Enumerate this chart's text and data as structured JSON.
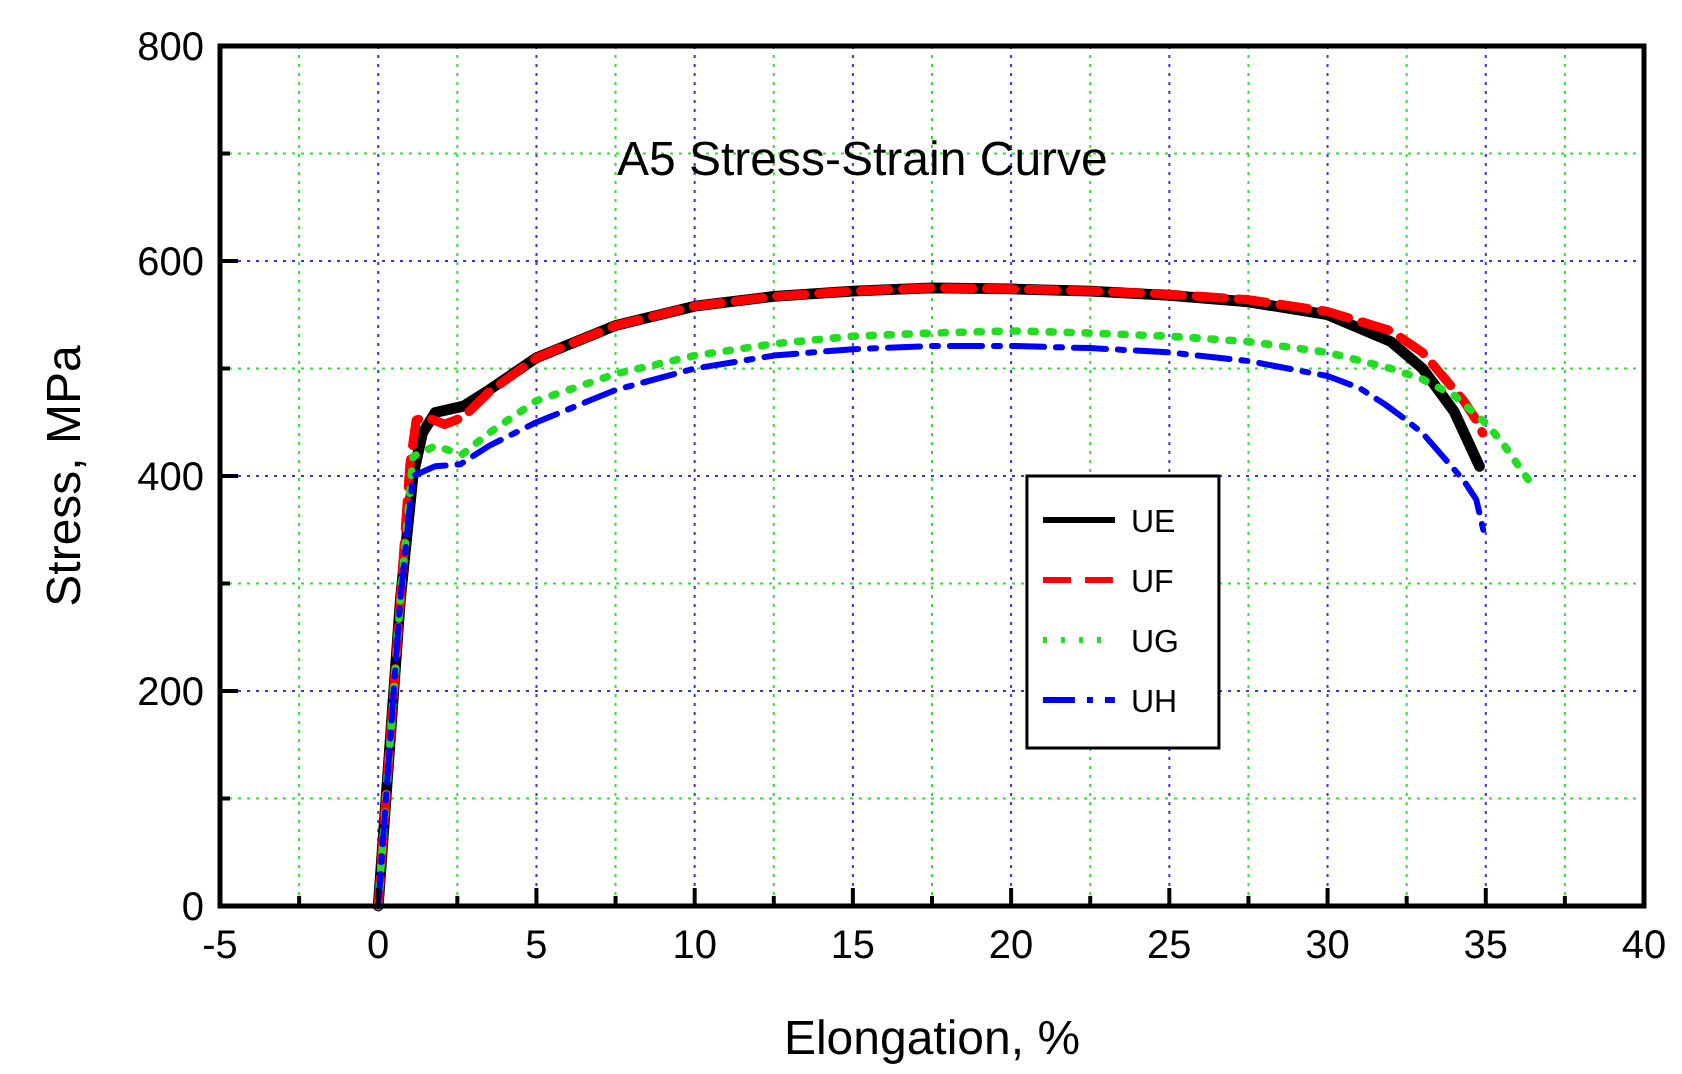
{
  "chart_data": {
    "type": "line",
    "title": "A5 Stress-Strain Curve",
    "xlabel": "Elongation, %",
    "ylabel": "Stress, MPa",
    "xlim": [
      -5,
      40
    ],
    "ylim": [
      0,
      800
    ],
    "xticks": [
      -5,
      {
        "value": -2.5,
        "label": null
      },
      0,
      {
        "value": 2.5,
        "label": null
      },
      5,
      {
        "value": 7.5,
        "label": null
      },
      10,
      {
        "value": 12.5,
        "label": null
      },
      15,
      {
        "value": 17.5,
        "label": null
      },
      20,
      {
        "value": 22.5,
        "label": null
      },
      25,
      {
        "value": 27.5,
        "label": null
      },
      30,
      {
        "value": 32.5,
        "label": null
      },
      35,
      {
        "value": 37.5,
        "label": null
      },
      40
    ],
    "yticks": [
      0,
      {
        "value": 100,
        "label": null
      },
      200,
      {
        "value": 300,
        "label": null
      },
      400,
      {
        "value": 500,
        "label": null
      },
      600,
      {
        "value": 700,
        "label": null
      },
      800
    ],
    "grid": true,
    "legend": "center",
    "marker": "none",
    "series": [
      {
        "name": "UE",
        "color": "#000000",
        "line_style": "solid",
        "x": [
          0,
          0.7,
          1.1,
          1.4,
          1.8,
          2.7,
          3.5,
          5,
          7.5,
          10,
          12.5,
          15,
          17.5,
          20,
          22.5,
          25,
          27.5,
          30,
          32,
          33,
          34,
          34.8
        ],
        "values": [
          0,
          285,
          400,
          440,
          459,
          465,
          480,
          510,
          540,
          558,
          567,
          572,
          575,
          574,
          572,
          568,
          562,
          550,
          525,
          500,
          460,
          409
        ]
      },
      {
        "name": "UF",
        "color": "#ff0000",
        "line_style": "dashed",
        "x": [
          0,
          0.7,
          1.0,
          1.2,
          1.5,
          2.1,
          2.7,
          3.5,
          5,
          7.5,
          10,
          12.5,
          15,
          17.5,
          20,
          22.5,
          25,
          27.5,
          30,
          32,
          33,
          34.3,
          34.7,
          34.9
        ],
        "values": [
          0,
          285,
          410,
          452,
          455,
          448,
          455,
          478,
          510,
          540,
          558,
          567,
          572,
          575,
          574,
          572,
          569,
          564,
          553,
          535,
          515,
          470,
          452,
          440
        ]
      },
      {
        "name": "UG",
        "color": "#22dd22",
        "line_style": "dotted",
        "x": [
          0,
          0.7,
          1.1,
          1.8,
          2.65,
          3.5,
          5,
          7.5,
          10,
          12.5,
          15,
          17.5,
          20,
          22.5,
          25,
          27.5,
          30,
          32,
          33,
          34,
          35,
          35.5,
          36,
          36.5
        ],
        "values": [
          0,
          285,
          418,
          428,
          420,
          440,
          470,
          495,
          512,
          523,
          530,
          533,
          535,
          533,
          530,
          525,
          515,
          500,
          490,
          475,
          449,
          432,
          411,
          390
        ]
      },
      {
        "name": "UH",
        "color": "#0000ff",
        "line_style": "dashdot",
        "x": [
          0,
          0.7,
          1.1,
          1.8,
          2.6,
          3.5,
          5,
          7.5,
          10,
          12.5,
          15,
          17.5,
          20,
          22.5,
          25,
          27.5,
          30,
          31,
          31.8,
          32.4,
          33,
          34.3,
          34.7,
          35.0
        ],
        "values": [
          0,
          285,
          400,
          409,
          411,
          428,
          450,
          480,
          500,
          512,
          518,
          521,
          521,
          519,
          515,
          507,
          493,
          482,
          467,
          454,
          440,
          396,
          378,
          340
        ]
      }
    ]
  }
}
